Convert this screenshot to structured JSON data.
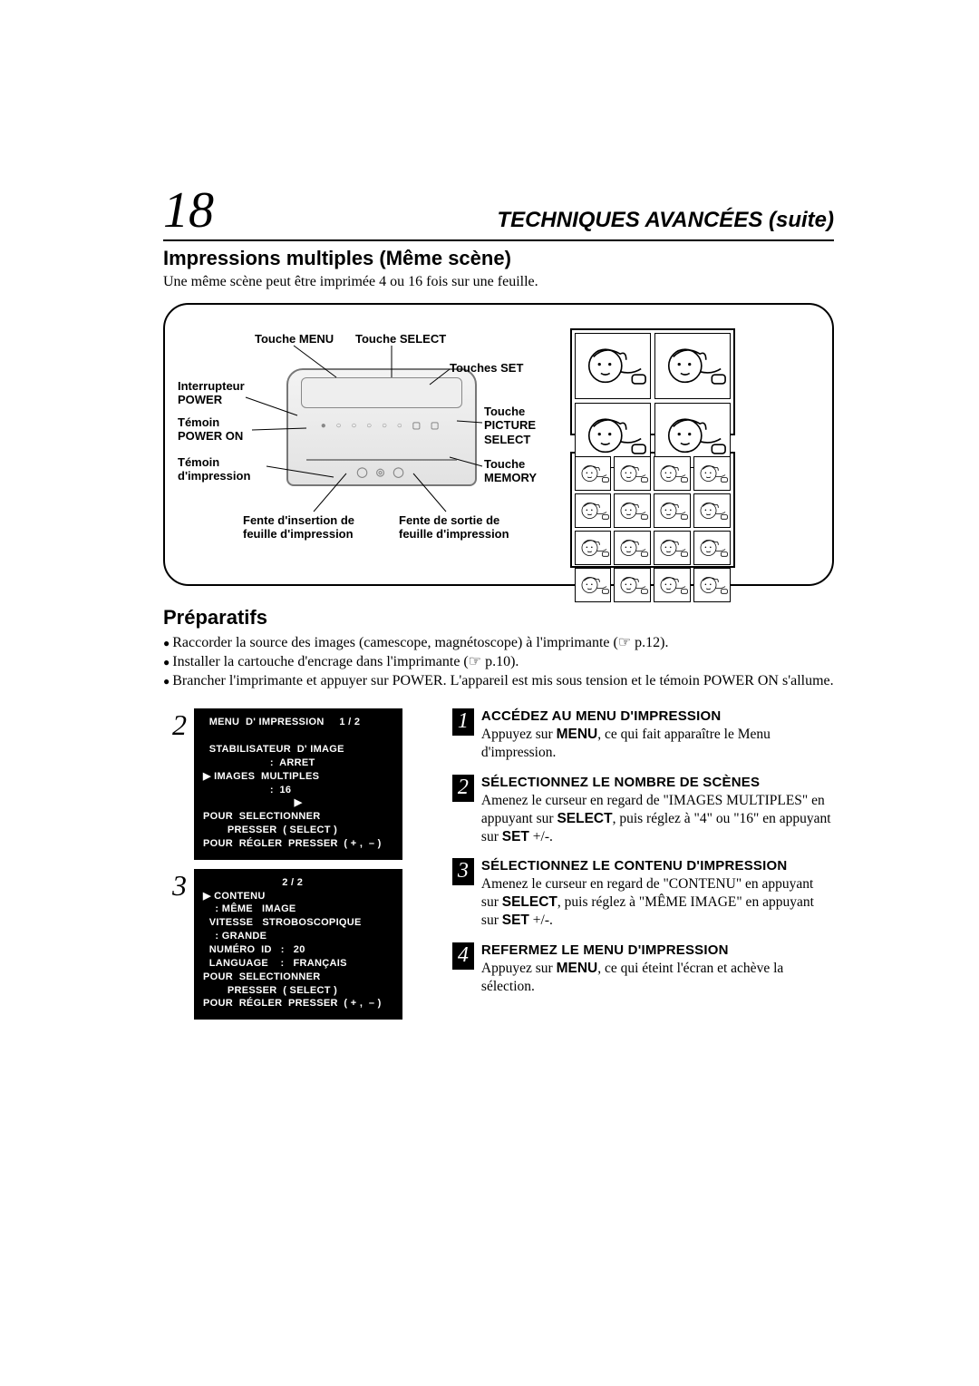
{
  "page_number": "18",
  "chapter_title": "TECHNIQUES AVANCÉES (suite)",
  "section_title": "Impressions multiples (Même scène)",
  "intro": "Une même scène peut être imprimée 4 ou 16 fois sur une feuille.",
  "diagram_labels": {
    "menu_btn": "Touche MENU",
    "select_btn": "Touche SELECT",
    "set_btns": "Touches SET",
    "power_switch": "Interrupteur\nPOWER",
    "power_led": "Témoin\nPOWER ON",
    "print_led": "Témoin\nd'impression",
    "picture_select": "Touche\nPICTURE\nSELECT",
    "memory_btn": "Touche\nMEMORY",
    "insert_slot": "Fente d'insertion de\nfeuille d'impression",
    "output_slot": "Fente de sortie de\nfeuille d'impression"
  },
  "prep_title": "Préparatifs",
  "prep_items": [
    "Raccorder la source des images (camescope, magnétoscope) à l'imprimante (☞ p.12).",
    "Installer la cartouche d'encrage dans l'imprimante (☞ p.10).",
    "Brancher l'imprimante et appuyer sur POWER. L'appareil est mis sous tension et le témoin POWER ON s'allume."
  ],
  "menu_blocks": [
    {
      "step_ref": "2",
      "lines": [
        "  MENU  D' IMPRESSION     1 / 2",
        "",
        "  STABILISATEUR  D' IMAGE",
        "                      :  ARRET",
        "▶ IMAGES  MULTIPLES",
        "                      :  16",
        "                              ▶",
        "POUR  SELECTIONNER",
        "        PRESSER  ( SELECT )",
        "POUR  RÉGLER  PRESSER  ( + ,  – )"
      ]
    },
    {
      "step_ref": "3",
      "lines": [
        "                          2 / 2",
        "▶ CONTENU",
        "    : MÊME   IMAGE",
        "  VITESSE   STROBOSCOPIQUE",
        "    : GRANDE",
        "  NUMÉRO  ID   :   20",
        "  LANGUAGE    :   FRANÇAIS",
        "POUR  SELECTIONNER",
        "        PRESSER  ( SELECT )",
        "POUR  RÉGLER  PRESSER  ( + ,  – )"
      ]
    }
  ],
  "steps": [
    {
      "n": "1",
      "title": "ACCÉDEZ AU MENU D'IMPRESSION",
      "body_html": "Appuyez sur <b>MENU</b>, ce qui fait apparaître le Menu d'impression."
    },
    {
      "n": "2",
      "title": "SÉLECTIONNEZ LE NOMBRE DE SCÈNES",
      "body_html": "Amenez le curseur en regard de \"IMAGES MULTIPLES\" en appuyant sur <b>SELECT</b>, puis réglez à \"4\" ou \"16\" en appuyant sur <b>SET</b> +/-."
    },
    {
      "n": "3",
      "title": "SÉLECTIONNEZ LE CONTENU D'IMPRESSION",
      "body_html": "Amenez le curseur en regard de \"CONTENU\" en appuyant sur <b>SELECT</b>, puis réglez à \"MÊME IMAGE\" en appuyant sur <b>SET</b> +/-."
    },
    {
      "n": "4",
      "title": "REFERMEZ LE MENU D'IMPRESSION",
      "body_html": "Appuyez sur <b>MENU</b>, ce qui éteint l'écran et achève la sélection."
    }
  ],
  "colors": {
    "text": "#000000",
    "bg": "#ffffff",
    "menu_bg": "#000000",
    "menu_fg": "#ffffff",
    "printer_fill": "#eaeaea",
    "printer_stroke": "#808080"
  }
}
